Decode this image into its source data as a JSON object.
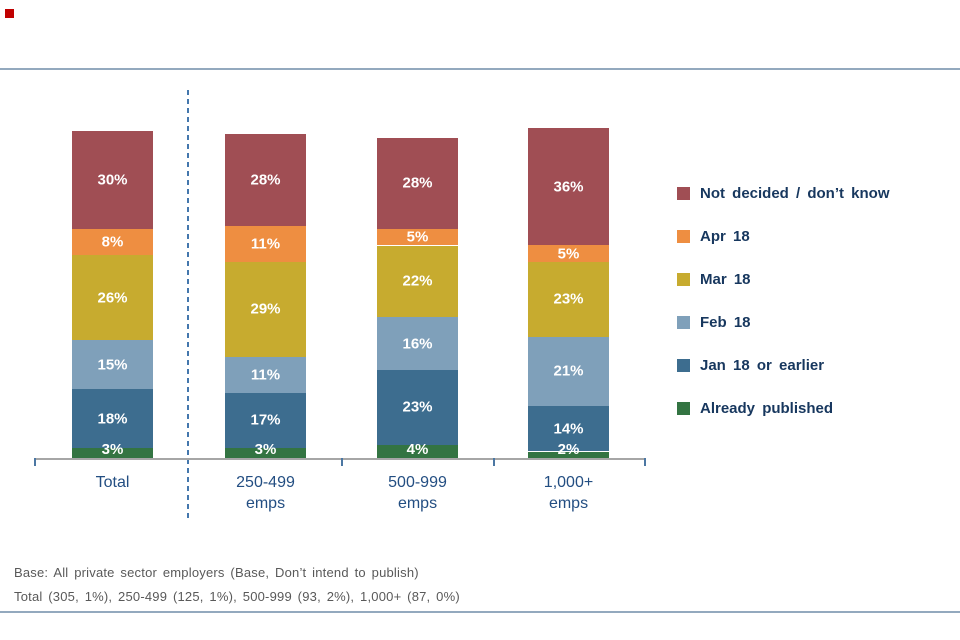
{
  "chart_data": {
    "type": "bar",
    "stacked": true,
    "title": "",
    "xlabel": "",
    "ylabel": "",
    "ylim": [
      0,
      100
    ],
    "value_suffix": "%",
    "grid": false,
    "legend_position": "right",
    "categories": [
      "Total",
      "250-499\nemps",
      "500-999\nemps",
      "1,000+\nemps"
    ],
    "series": [
      {
        "name": "Already published",
        "color": "#337442",
        "values": [
          3,
          3,
          4,
          2
        ]
      },
      {
        "name": "Jan 18 or earlier",
        "color": "#3D6D8F",
        "values": [
          18,
          17,
          23,
          14
        ]
      },
      {
        "name": "Feb 18",
        "color": "#7FA0BA",
        "values": [
          15,
          11,
          16,
          21
        ]
      },
      {
        "name": "Mar 18",
        "color": "#C7AB2F",
        "values": [
          26,
          29,
          22,
          23
        ]
      },
      {
        "name": "Apr 18",
        "color": "#EE8E41",
        "values": [
          8,
          11,
          5,
          5
        ]
      },
      {
        "name": "Not decided / don’t know",
        "color": "#A04E54",
        "values": [
          30,
          28,
          28,
          36
        ]
      }
    ]
  },
  "legend": {
    "items": [
      {
        "label": "Not decided / don’t know",
        "color": "#A04E54"
      },
      {
        "label": "Apr 18",
        "color": "#EE8E41"
      },
      {
        "label": "Mar 18",
        "color": "#C7AB2F"
      },
      {
        "label": "Feb 18",
        "color": "#7FA0BA"
      },
      {
        "label": "Jan 18 or earlier",
        "color": "#3D6D8F"
      },
      {
        "label": "Already published",
        "color": "#337442"
      }
    ]
  },
  "footnote": {
    "line1": "Base: All private sector employers (Base, Don’t intend to publish)",
    "line2": "Total (305, 1%), 250-499 (125, 1%), 500-999 (93, 2%), 1,000+ (87, 0%)"
  },
  "colors": {
    "accent_marker": "#C00000",
    "horizontal_rule": "#93A9BE",
    "dashed_divider": "#4477AD",
    "axis_line": "#A6A6A6",
    "axis_tick": "#4C77A3",
    "legend_text": "#17375E",
    "category_text": "#234E82",
    "footnote_text": "#595959",
    "value_label_text": "#FFFFFF"
  }
}
